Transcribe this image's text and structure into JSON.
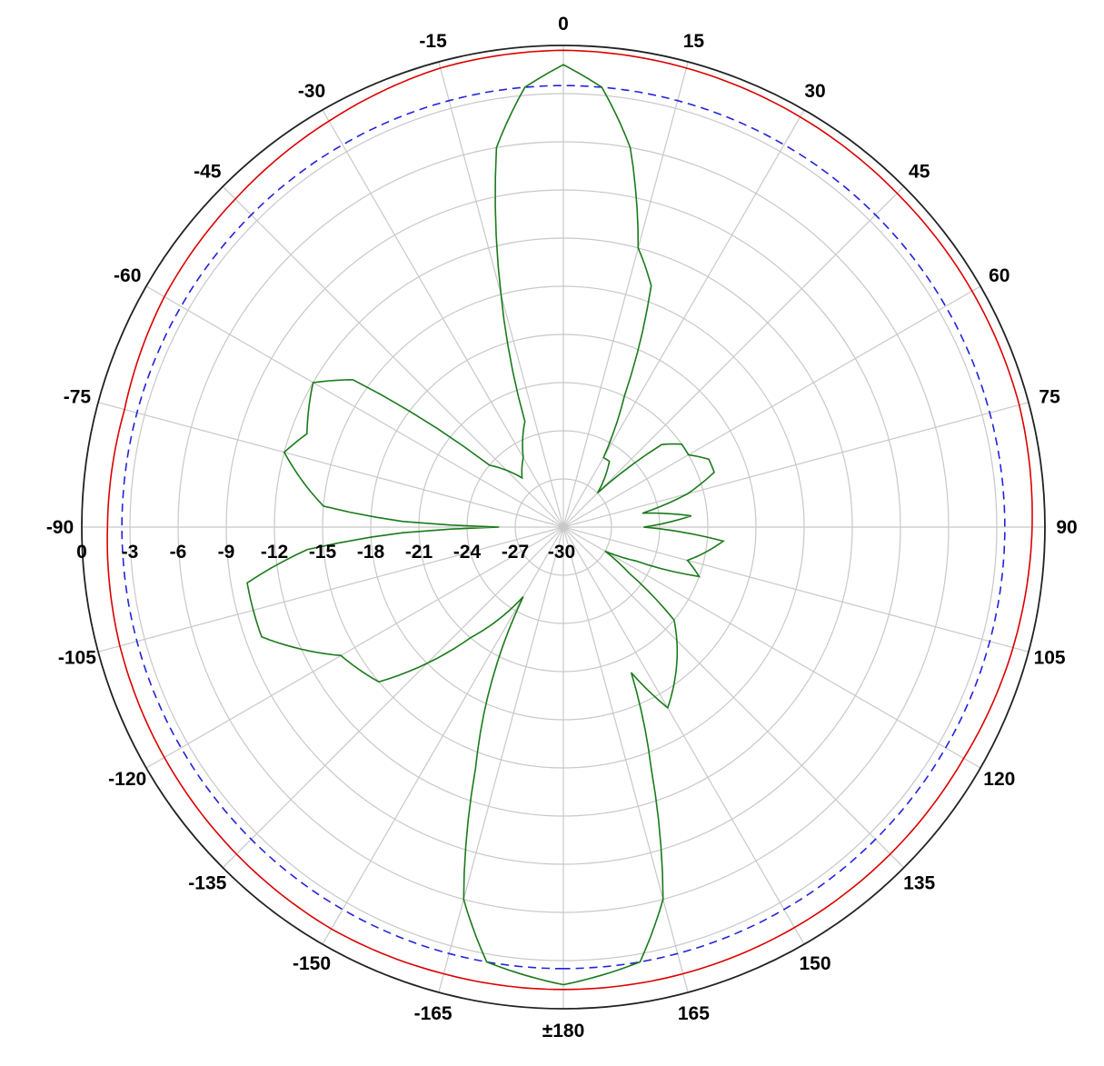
{
  "chart_data": {
    "type": "polar-line",
    "title": "",
    "angle_unit": "deg",
    "radial_axis": {
      "min": -30,
      "max": 0,
      "step": 3,
      "tick_labels": [
        "0",
        "-3",
        "-6",
        "-9",
        "-12",
        "-15",
        "-18",
        "-21",
        "-24",
        "-27",
        "-30"
      ]
    },
    "angle_ticks": [
      {
        "angle": 0,
        "label": "0"
      },
      {
        "angle": 15,
        "label": "15"
      },
      {
        "angle": 30,
        "label": "30"
      },
      {
        "angle": 45,
        "label": "45"
      },
      {
        "angle": 60,
        "label": "60"
      },
      {
        "angle": 75,
        "label": "75"
      },
      {
        "angle": 90,
        "label": "90"
      },
      {
        "angle": 105,
        "label": "105"
      },
      {
        "angle": 120,
        "label": "120"
      },
      {
        "angle": 135,
        "label": "135"
      },
      {
        "angle": 150,
        "label": "150"
      },
      {
        "angle": 165,
        "label": "165"
      },
      {
        "angle": 180,
        "label": "±180"
      },
      {
        "angle": -165,
        "label": "-165"
      },
      {
        "angle": -150,
        "label": "-150"
      },
      {
        "angle": -135,
        "label": "-135"
      },
      {
        "angle": -120,
        "label": "-120"
      },
      {
        "angle": -105,
        "label": "-105"
      },
      {
        "angle": -90,
        "label": "-90"
      },
      {
        "angle": -75,
        "label": "-75"
      },
      {
        "angle": -60,
        "label": "-60"
      },
      {
        "angle": -45,
        "label": "-45"
      },
      {
        "angle": -30,
        "label": "-30"
      },
      {
        "angle": -15,
        "label": "-15"
      }
    ],
    "grid": true,
    "series": [
      {
        "color": "#dd0000",
        "style": "solid",
        "angles": [
          -180,
          -165,
          -150,
          -135,
          -120,
          -105,
          -90,
          -75,
          -60,
          -45,
          -30,
          -15,
          0,
          15,
          30,
          45,
          60,
          75,
          90,
          105,
          120,
          135,
          150,
          165,
          180
        ],
        "values": [
          -1.2,
          -1.2,
          -1.1,
          -1.2,
          -1.3,
          -1.4,
          -1.6,
          -1.7,
          -1.3,
          -1.1,
          -0.8,
          -0.4,
          -0.3,
          -0.4,
          -0.5,
          -0.6,
          -0.6,
          -0.6,
          -0.8,
          -1.0,
          -1.2,
          -1.2,
          -1.2,
          -1.2,
          -1.2
        ]
      },
      {
        "color": "#2222dd",
        "style": "dashed",
        "angles": [
          -180,
          -90,
          0,
          90,
          180
        ],
        "values": [
          -2.5,
          -2.5,
          -2.5,
          -2.5,
          -2.5
        ]
      },
      {
        "color": "#1a7a1a",
        "style": "solid",
        "angles": [
          -180,
          -170,
          -165,
          -160,
          -150,
          -140,
          -130,
          -120,
          -110,
          -100,
          -95,
          -92,
          -90,
          -88,
          -85,
          -75,
          -70,
          -60,
          -55,
          -50,
          -40,
          -30,
          -20,
          -15,
          -10,
          -5,
          0,
          5,
          10,
          15,
          20,
          25,
          30,
          35,
          40,
          45,
          50,
          55,
          60,
          65,
          70,
          75,
          80,
          85,
          90,
          95,
          100,
          105,
          110,
          115,
          120,
          125,
          130,
          140,
          150,
          155,
          160,
          165,
          170,
          180
        ],
        "values": [
          -1.5,
          -2.5,
          -6,
          -14,
          -25,
          -21,
          -15,
          -14,
          -10,
          -10,
          -14,
          -20,
          -26,
          -20,
          -15,
          -12,
          -13,
          -12,
          -14,
          -24,
          -26,
          -25,
          -23,
          -15,
          -6,
          -2.5,
          -1.2,
          -2.5,
          -6,
          -12,
          -14,
          -21,
          -25,
          -25,
          -26,
          -27,
          -22,
          -21,
          -21,
          -20,
          -20,
          -22,
          -25,
          -22,
          -25,
          -20,
          -21,
          -22,
          -21,
          -25,
          -27,
          -25,
          -21,
          -19,
          -17,
          -20,
          -14,
          -6,
          -2.5,
          -1.5
        ]
      }
    ]
  }
}
